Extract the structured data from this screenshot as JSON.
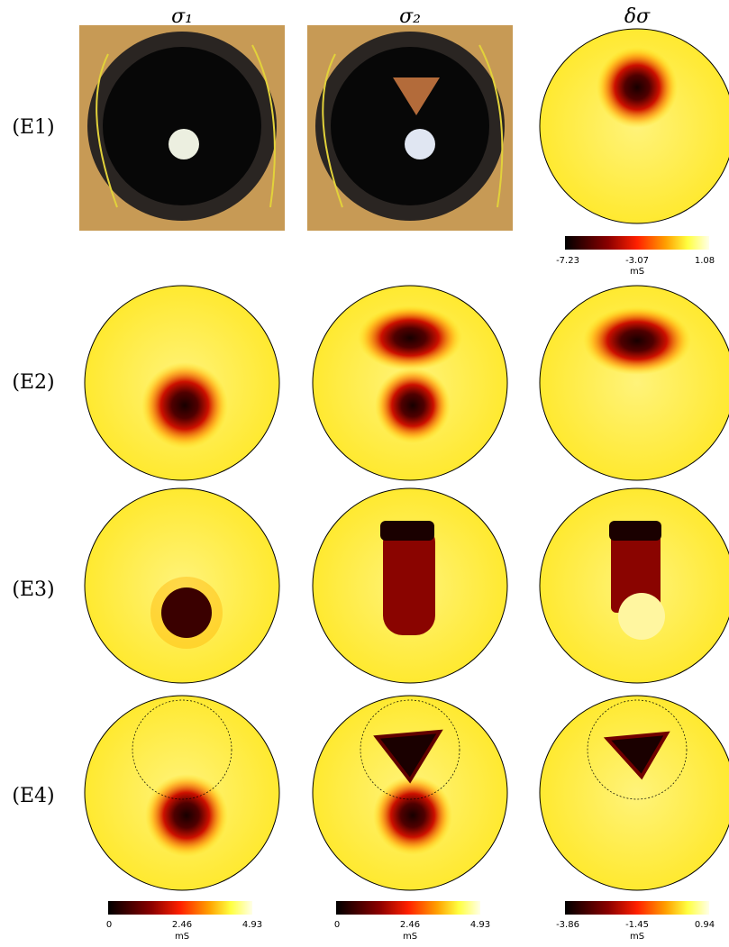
{
  "column_headers": [
    "σ₁",
    "σ₂",
    "δσ"
  ],
  "row_labels": [
    "(E1)",
    "(E2)",
    "(E3)",
    "(E4)"
  ],
  "colorbars": [
    {
      "ticks": [
        "-7.23",
        "-3.07",
        "1.08"
      ],
      "unit": "mS"
    },
    {
      "ticks": [
        "0",
        "2.46",
        "4.93"
      ],
      "unit": "mS"
    },
    {
      "ticks": [
        "0",
        "2.46",
        "4.93"
      ],
      "unit": "mS"
    },
    {
      "ticks": [
        "-3.86",
        "-1.45",
        "0.94"
      ],
      "unit": "mS"
    }
  ]
}
